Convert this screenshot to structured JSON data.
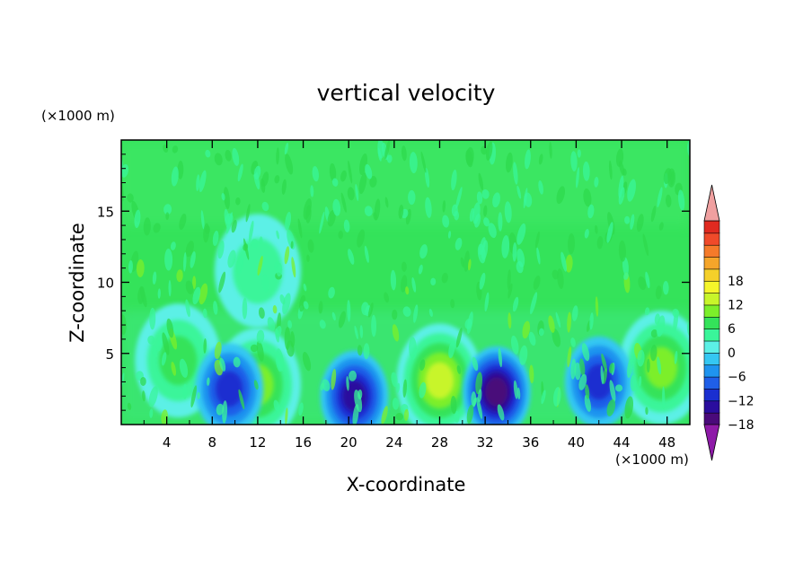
{
  "chart_data": {
    "type": "heatmap",
    "title": "vertical velocity",
    "xlabel": "X-coordinate",
    "ylabel": "Z-coordinate",
    "x_unit": "(×1000 m)",
    "y_unit": "(×1000 m)",
    "xlim": [
      0,
      50
    ],
    "ylim": [
      0,
      20
    ],
    "x_ticks": [
      4,
      8,
      12,
      16,
      20,
      24,
      28,
      32,
      36,
      40,
      44,
      48
    ],
    "y_ticks": [
      5,
      10,
      15
    ],
    "colorbar": {
      "min": -21,
      "max": 21,
      "step": 3,
      "tick_values": [
        18,
        12,
        6,
        0,
        -6,
        -12,
        -18
      ],
      "tick_labels": [
        "18",
        "12",
        "6",
        "0",
        "−6",
        "−12",
        "−18"
      ],
      "colors": [
        "#4a0a7a",
        "#2a0d9e",
        "#1a2fd0",
        "#1f5fe8",
        "#1f94ef",
        "#35c7f2",
        "#5cf0e6",
        "#3af59a",
        "#34e35a",
        "#7cef2a",
        "#c8f52a",
        "#f5f52a",
        "#f5d02a",
        "#f5a52a",
        "#f57a2a",
        "#f04a2a",
        "#e02a20"
      ],
      "extend_low_color": "#8e1aa8",
      "extend_high_color": "#f0a0a0"
    },
    "features": [
      {
        "x": 12,
        "z": 2.8,
        "w": 8,
        "sign": "updraft"
      },
      {
        "x": 28,
        "z": 3.1,
        "w": 10,
        "sign": "updraft"
      },
      {
        "x": 47.5,
        "z": 4.0,
        "w": 7,
        "sign": "updraft"
      },
      {
        "x": 5,
        "z": 4.5,
        "w": 4,
        "sign": "updraft"
      },
      {
        "x": 20.5,
        "z": 2.0,
        "w": -11,
        "sign": "downdraft"
      },
      {
        "x": 33,
        "z": 2.3,
        "w": -14,
        "sign": "downdraft"
      },
      {
        "x": 42,
        "z": 3.0,
        "w": -9,
        "sign": "downdraft"
      },
      {
        "x": 9.5,
        "z": 2.5,
        "w": -7,
        "sign": "downdraft"
      },
      {
        "x": 12,
        "z": 10.8,
        "w": 3,
        "sign": "updraft"
      }
    ]
  }
}
